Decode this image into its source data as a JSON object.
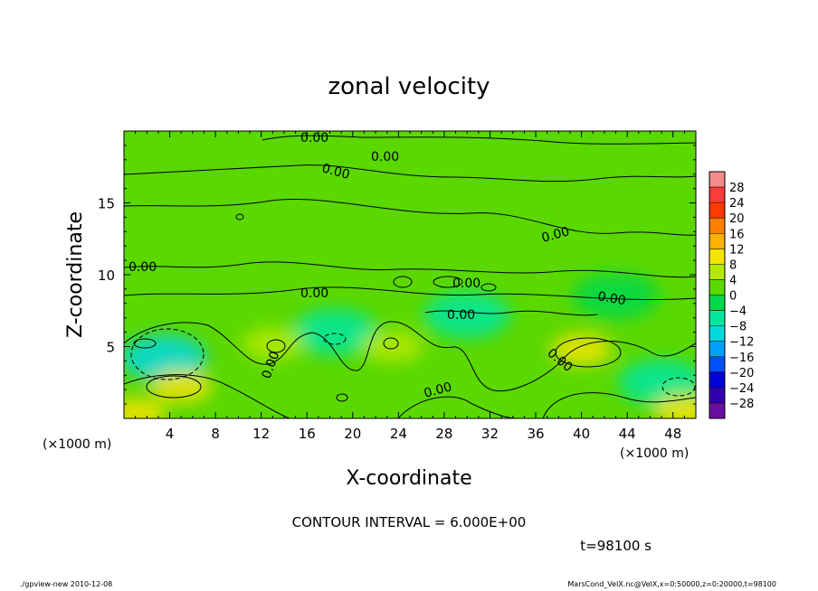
{
  "chart_data": {
    "type": "heatmap",
    "title": "zonal velocity",
    "xlabel": "X-coordinate",
    "ylabel": "Z-coordinate",
    "x_unit_label": "(×1000 m)",
    "z_unit_label": "(×1000 m)",
    "xlim": [
      0,
      50
    ],
    "zlim": [
      0,
      20
    ],
    "x_ticks": [
      4,
      8,
      12,
      16,
      20,
      24,
      28,
      32,
      36,
      40,
      44,
      48
    ],
    "x_tick_labels": [
      "4",
      "8",
      "12",
      "16",
      "20",
      "24",
      "28",
      "32",
      "36",
      "40",
      "44",
      "48"
    ],
    "z_ticks": [
      5,
      10,
      15
    ],
    "z_tick_labels": [
      "5",
      "10",
      "15"
    ],
    "colorbar": {
      "levels": [
        -28,
        -24,
        -20,
        -16,
        -12,
        -8,
        -4,
        0,
        4,
        8,
        12,
        16,
        20,
        24,
        28
      ],
      "labels": [
        "28",
        "24",
        "20",
        "16",
        "12",
        "8",
        "4",
        "0",
        "−4",
        "−8",
        "−12",
        "−16",
        "−20",
        "−24",
        "−28"
      ],
      "colors": [
        "#f58a8a",
        "#ff3a3a",
        "#ff3a00",
        "#ff7f00",
        "#ffb000",
        "#f5e400",
        "#b4ea00",
        "#5ad800",
        "#00d84a",
        "#00e8a0",
        "#00d8e0",
        "#00a0ff",
        "#0050ff",
        "#0000d8",
        "#3000b0",
        "#6a10a0"
      ]
    },
    "contour_interval_text": "CONTOUR INTERVAL = 6.000E+00",
    "contour_labels": [
      "0.00",
      "0.00",
      "0.00",
      "0.00",
      "0.00",
      "0.00",
      "0.00",
      "0.00",
      "0.00",
      "0.00",
      "0.00",
      "0.00"
    ],
    "time_text": "t=98100 s",
    "field_features": [
      {
        "kind": "negative",
        "x": 3.5,
        "z": 4.2,
        "value": -10
      },
      {
        "kind": "negative",
        "x": 18.5,
        "z": 6.0,
        "value": -6
      },
      {
        "kind": "negative",
        "x": 30.0,
        "z": 7.2,
        "value": -5
      },
      {
        "kind": "negative",
        "x": 47.0,
        "z": 2.5,
        "value": -8
      },
      {
        "kind": "negative",
        "x": 43.0,
        "z": 8.5,
        "value": -4
      },
      {
        "kind": "positive",
        "x": 5.0,
        "z": 2.2,
        "value": 10
      },
      {
        "kind": "positive",
        "x": 40.0,
        "z": 4.8,
        "value": 9
      },
      {
        "kind": "positive",
        "x": 23.5,
        "z": 5.0,
        "value": 6
      },
      {
        "kind": "positive",
        "x": 13.0,
        "z": 5.2,
        "value": 5
      },
      {
        "kind": "positive",
        "x": 1.0,
        "z": 0.3,
        "value": 8
      },
      {
        "kind": "positive",
        "x": 49.0,
        "z": 0.5,
        "value": 8
      }
    ]
  },
  "footer": {
    "left": "./gpview-new  2010-12-08",
    "right": "MarsCond_VelX.nc@VelX,x=0:50000,z=0:20000,t=98100"
  }
}
